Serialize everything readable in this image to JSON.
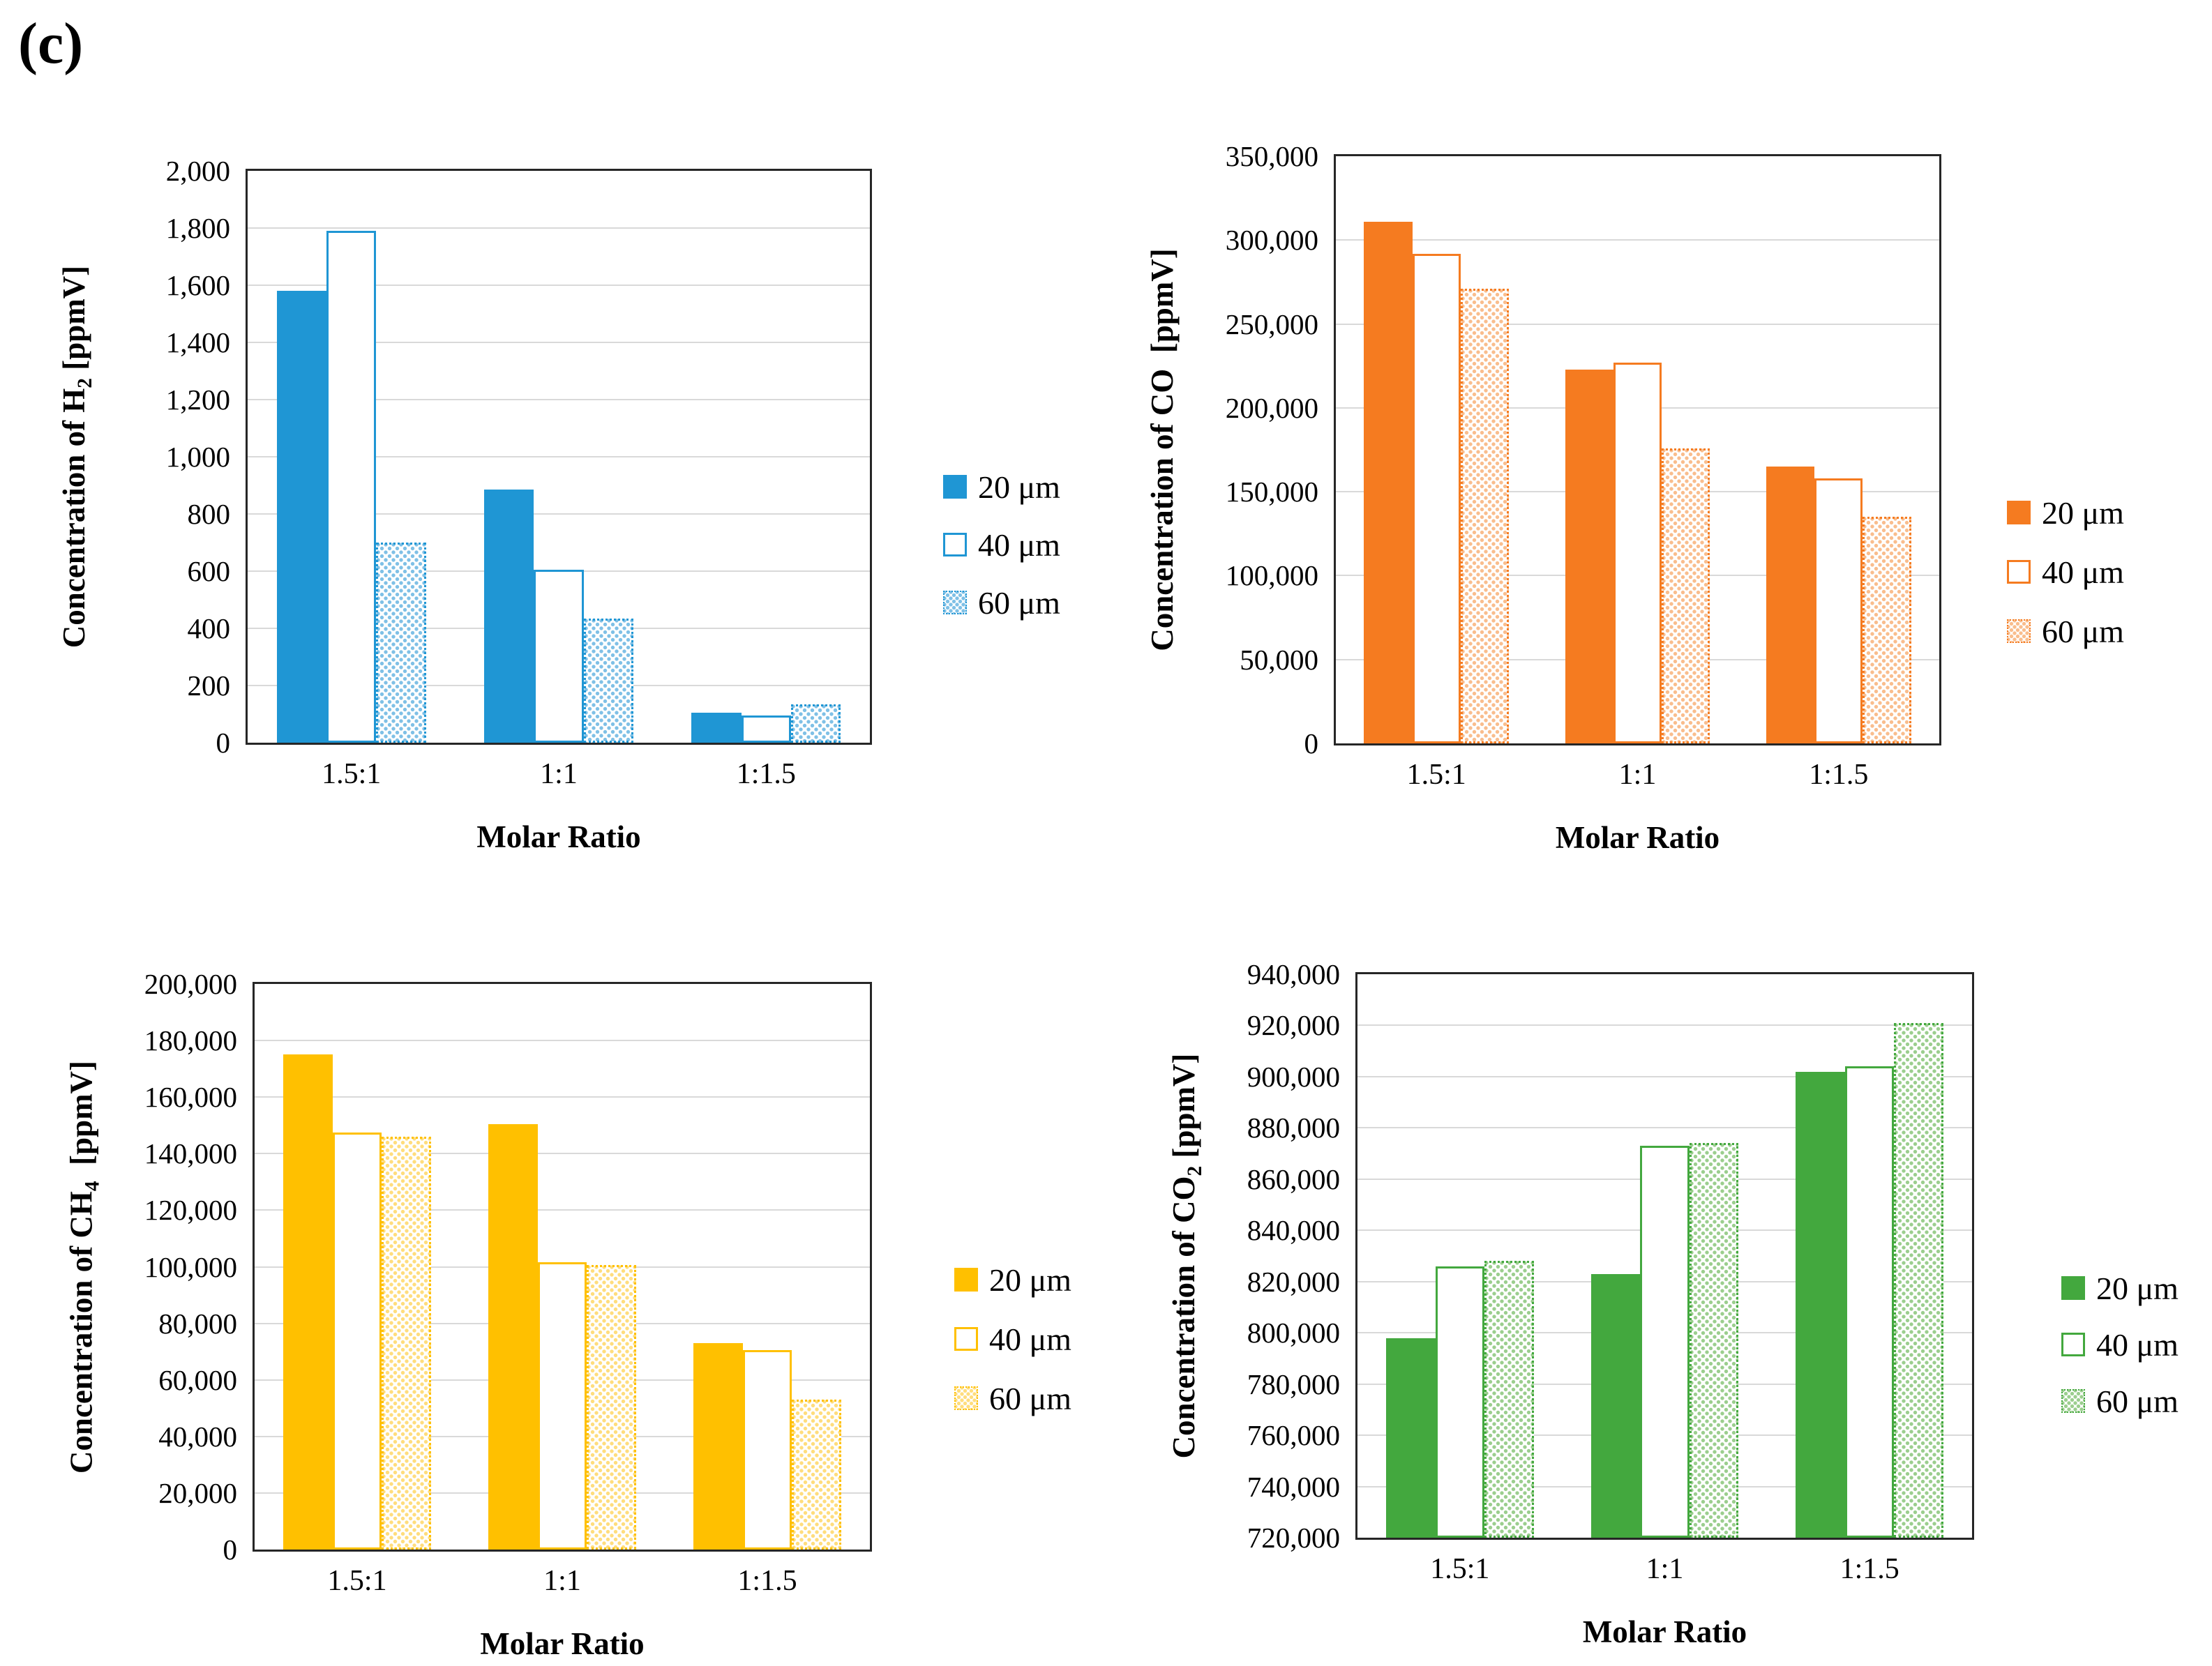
{
  "figure_label": "(c)",
  "chart_data": [
    {
      "type": "bar",
      "gas": "H2",
      "title": "",
      "ylabel": "Concentration of H₂ [ppmV]",
      "ylabel_parts": [
        {
          "t": "Concentration of H"
        },
        {
          "t": "2",
          "sub": true
        },
        {
          "t": " [ppmV]"
        }
      ],
      "xlabel": "Molar Ratio",
      "categories": [
        "1.5:1",
        "1:1",
        "1:1.5"
      ],
      "series": [
        {
          "name": "20 μm",
          "pattern": "solid",
          "values": [
            1580,
            885,
            105
          ]
        },
        {
          "name": "40 μm",
          "pattern": "outline",
          "values": [
            1790,
            605,
            95
          ]
        },
        {
          "name": "60 μm",
          "pattern": "dotted",
          "values": [
            700,
            435,
            135
          ]
        }
      ],
      "ylim": [
        0,
        2000
      ],
      "ytick_step": 200,
      "grid": true,
      "legend_position": "right",
      "colors": {
        "main": "#1f96d4",
        "dot": "#7fc0e6"
      }
    },
    {
      "type": "bar",
      "gas": "CO",
      "title": "",
      "ylabel": "Concentration of CO [ppmV]",
      "ylabel_parts": [
        {
          "t": "Concentration of CO"
        },
        {
          "t": "  [ppmV]"
        }
      ],
      "xlabel": "Molar Ratio",
      "categories": [
        "1.5:1",
        "1:1",
        "1:1.5"
      ],
      "series": [
        {
          "name": "20 μm",
          "pattern": "solid",
          "values": [
            311000,
            223000,
            165000
          ]
        },
        {
          "name": "40 μm",
          "pattern": "outline",
          "values": [
            292000,
            227000,
            158000
          ]
        },
        {
          "name": "60 μm",
          "pattern": "dotted",
          "values": [
            271000,
            176000,
            135000
          ]
        }
      ],
      "ylim": [
        0,
        350000
      ],
      "ytick_step": 50000,
      "grid": true,
      "legend_position": "right",
      "colors": {
        "main": "#f57b20",
        "dot": "#f9bd8d"
      }
    },
    {
      "type": "bar",
      "gas": "CH4",
      "title": "",
      "ylabel": "Concentration of CH₄ [ppmV]",
      "ylabel_parts": [
        {
          "t": "Concentration of CH"
        },
        {
          "t": "4",
          "sub": true
        },
        {
          "t": "  [ppmV]"
        }
      ],
      "xlabel": "Molar Ratio",
      "categories": [
        "1.5:1",
        "1:1",
        "1:1.5"
      ],
      "series": [
        {
          "name": "20 μm",
          "pattern": "solid",
          "values": [
            175000,
            150500,
            73000
          ]
        },
        {
          "name": "40 μm",
          "pattern": "outline",
          "values": [
            147500,
            101500,
            70500
          ]
        },
        {
          "name": "60 μm",
          "pattern": "dotted",
          "values": [
            146000,
            100500,
            53000
          ]
        }
      ],
      "ylim": [
        0,
        200000
      ],
      "ytick_step": 20000,
      "grid": true,
      "legend_position": "right",
      "colors": {
        "main": "#ffc000",
        "dot": "#ffdd7d"
      }
    },
    {
      "type": "bar",
      "gas": "CO2",
      "title": "",
      "ylabel": "Concentration of CO₂ [ppmV]",
      "ylabel_parts": [
        {
          "t": "Concentration of  CO"
        },
        {
          "t": "2",
          "sub": true
        },
        {
          "t": " [ppmV]"
        }
      ],
      "xlabel": "Molar Ratio",
      "categories": [
        "1.5:1",
        "1:1",
        "1:1.5"
      ],
      "series": [
        {
          "name": "20 μm",
          "pattern": "solid",
          "values": [
            798000,
            823000,
            902000
          ]
        },
        {
          "name": "40 μm",
          "pattern": "outline",
          "values": [
            826000,
            873000,
            904000
          ]
        },
        {
          "name": "60 μm",
          "pattern": "dotted",
          "values": [
            828000,
            874000,
            921000
          ]
        }
      ],
      "ylim": [
        720000,
        940000
      ],
      "ytick_step": 20000,
      "grid": true,
      "legend_position": "right",
      "colors": {
        "main": "#43a83e",
        "dot": "#9bce8e"
      }
    }
  ]
}
